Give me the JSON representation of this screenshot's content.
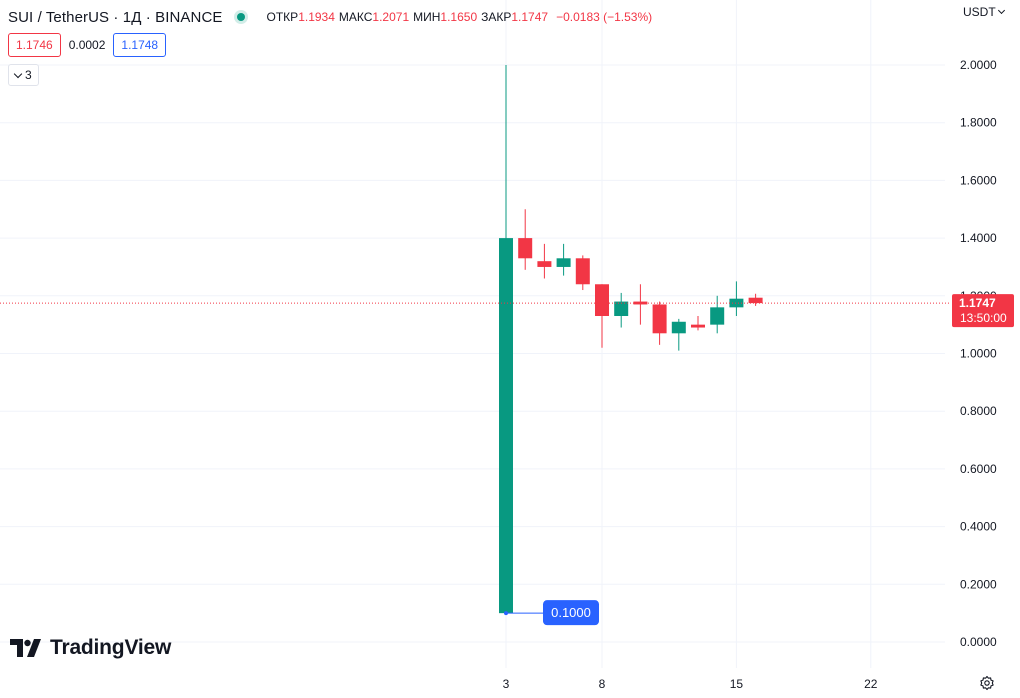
{
  "header": {
    "title": "SUI / TetherUS · 1Д · BINANCE",
    "ohlc": {
      "open_label": "ОТКР",
      "open": "1.1934",
      "high_label": "МАКС",
      "high": "1.2071",
      "low_label": "МИН",
      "low": "1.1650",
      "close_label": "ЗАКР",
      "close": "1.1747",
      "change": "−0.0183 (−1.53%)"
    },
    "bid": "1.1746",
    "spread": "0.0002",
    "ask": "1.1748",
    "indicators_count": "3",
    "currency": "USDT"
  },
  "logo": {
    "text": "TradingView"
  },
  "colors": {
    "up": "#089981",
    "down": "#f23645",
    "blue": "#2962ff"
  },
  "chart_data": {
    "type": "candlestick",
    "symbol": "SUI / TetherUS",
    "interval": "1Д",
    "exchange": "BINANCE",
    "ylim": [
      0,
      2.1
    ],
    "y_ticks": [
      "0.0000",
      "0.2000",
      "0.4000",
      "0.6000",
      "0.8000",
      "1.0000",
      "1.2000",
      "1.4000",
      "1.6000",
      "1.8000",
      "2.0000"
    ],
    "x_ticks": [
      {
        "day": 3,
        "label": "3"
      },
      {
        "day": 8,
        "label": "8"
      },
      {
        "day": 15,
        "label": "15"
      },
      {
        "day": 22,
        "label": "22"
      }
    ],
    "candles": [
      {
        "day": 3,
        "open": 0.1,
        "high": 2.0,
        "low": 0.1,
        "close": 1.4
      },
      {
        "day": 4,
        "open": 1.4,
        "high": 1.5,
        "low": 1.29,
        "close": 1.33
      },
      {
        "day": 5,
        "open": 1.32,
        "high": 1.38,
        "low": 1.26,
        "close": 1.3
      },
      {
        "day": 6,
        "open": 1.3,
        "high": 1.38,
        "low": 1.27,
        "close": 1.33
      },
      {
        "day": 7,
        "open": 1.33,
        "high": 1.34,
        "low": 1.22,
        "close": 1.24
      },
      {
        "day": 8,
        "open": 1.24,
        "high": 1.24,
        "low": 1.02,
        "close": 1.13
      },
      {
        "day": 9,
        "open": 1.13,
        "high": 1.21,
        "low": 1.09,
        "close": 1.18
      },
      {
        "day": 10,
        "open": 1.18,
        "high": 1.24,
        "low": 1.1,
        "close": 1.17
      },
      {
        "day": 11,
        "open": 1.17,
        "high": 1.18,
        "low": 1.03,
        "close": 1.07
      },
      {
        "day": 12,
        "open": 1.07,
        "high": 1.12,
        "low": 1.01,
        "close": 1.11
      },
      {
        "day": 13,
        "open": 1.1,
        "high": 1.13,
        "low": 1.08,
        "close": 1.09
      },
      {
        "day": 14,
        "open": 1.1,
        "high": 1.2,
        "low": 1.07,
        "close": 1.16
      },
      {
        "day": 15,
        "open": 1.16,
        "high": 1.25,
        "low": 1.13,
        "close": 1.19
      },
      {
        "day": 16,
        "open": 1.1934,
        "high": 1.2071,
        "low": 1.165,
        "close": 1.1747
      }
    ],
    "last_price": {
      "value": 1.1747,
      "label": "1.1747",
      "countdown": "13:50:00"
    },
    "low_marker": {
      "value": 0.1,
      "label": "0.1000"
    }
  }
}
